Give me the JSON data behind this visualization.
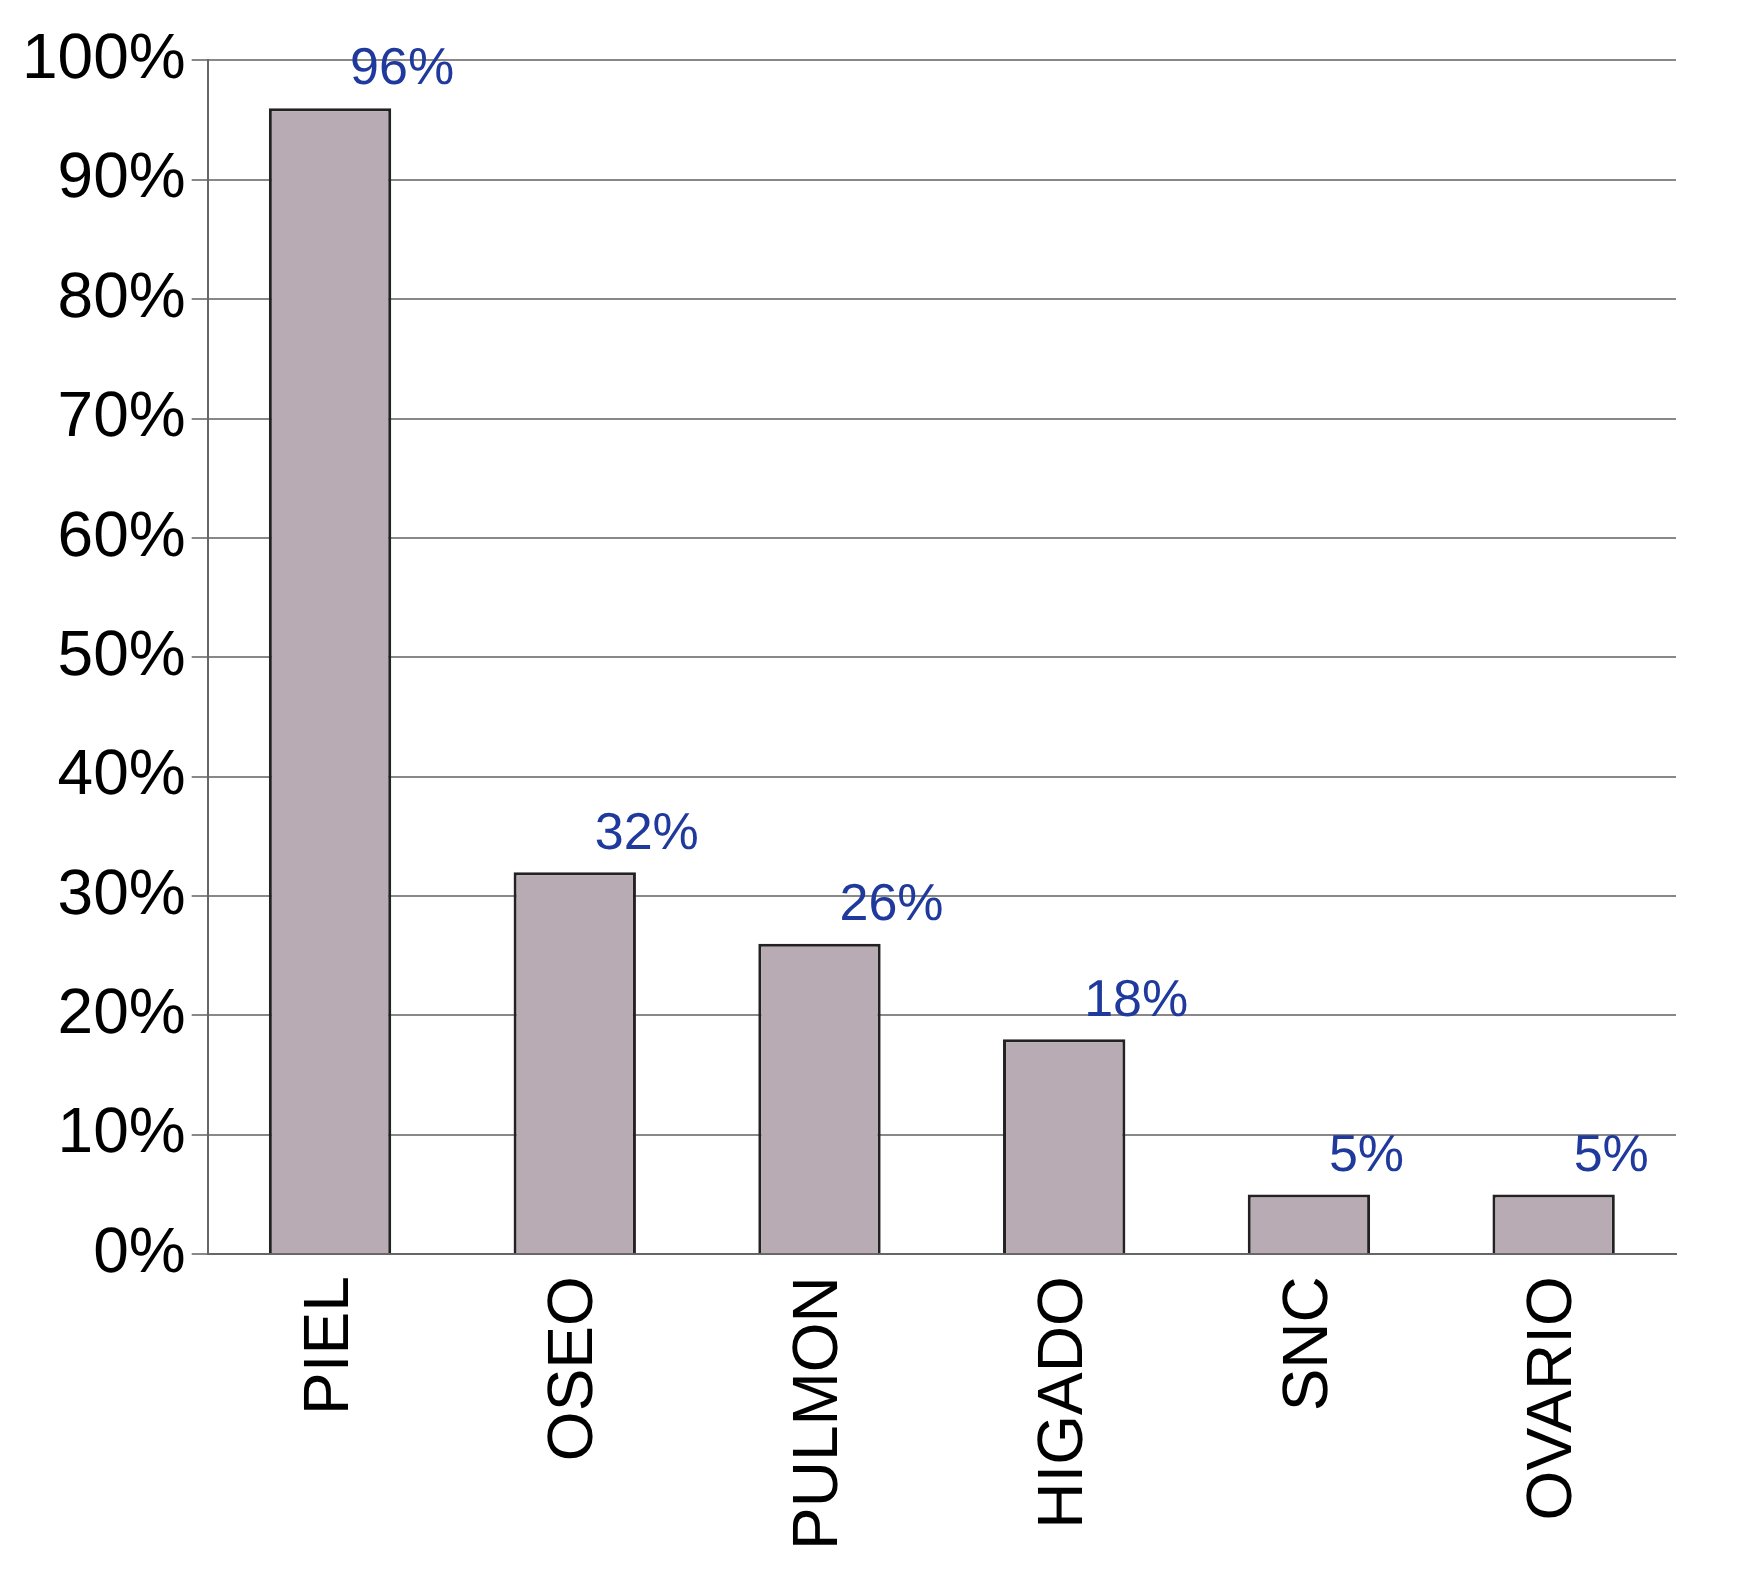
{
  "chart_data": {
    "type": "bar",
    "categories": [
      "PIEL",
      "OSEO",
      "PULMON",
      "HIGADO",
      "SNC",
      "OVARIO"
    ],
    "values": [
      96,
      32,
      26,
      18,
      5,
      5
    ],
    "value_labels": [
      "96%",
      "32%",
      "26%",
      "18%",
      "5%",
      "5%"
    ],
    "color": "#b9abb3",
    "ylim": [
      0,
      100
    ],
    "yticks": [
      {
        "value": 0,
        "label": "0%"
      },
      {
        "value": 10,
        "label": "10%"
      },
      {
        "value": 20,
        "label": "20%"
      },
      {
        "value": 30,
        "label": "30%"
      },
      {
        "value": 40,
        "label": "40%"
      },
      {
        "value": 50,
        "label": "50%"
      },
      {
        "value": 60,
        "label": "60%"
      },
      {
        "value": 70,
        "label": "70%"
      },
      {
        "value": 80,
        "label": "80%"
      },
      {
        "value": 90,
        "label": "90%"
      },
      {
        "value": 100,
        "label": "100%"
      }
    ],
    "grid": "y",
    "legend": false
  }
}
